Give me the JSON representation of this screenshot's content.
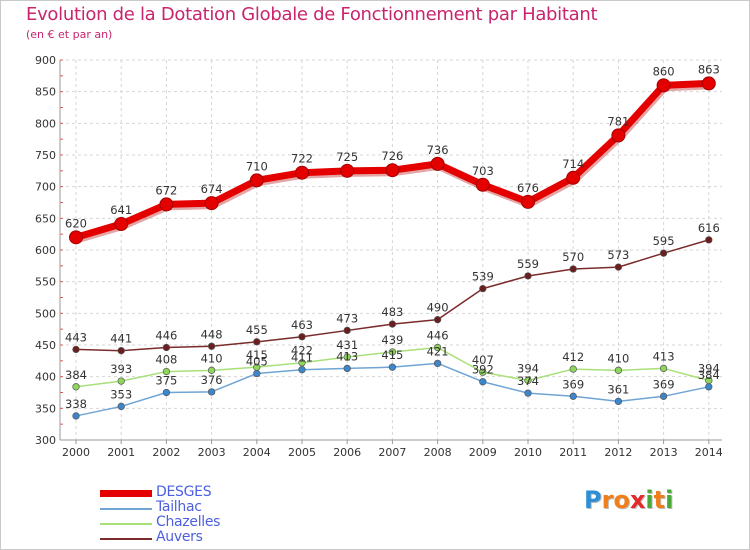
{
  "title": "Evolution de la Dotation Globale de Fonctionnement par Habitant",
  "subtitle": "(en € et par an)",
  "logo": {
    "letters": [
      {
        "ch": "P",
        "color": "#2d8fd6"
      },
      {
        "ch": "r",
        "color": "#f07f1a"
      },
      {
        "ch": "o",
        "color": "#f07f1a"
      },
      {
        "ch": "x",
        "color": "#e32b2b"
      },
      {
        "ch": "i",
        "color": "#4aa838"
      },
      {
        "ch": "t",
        "color": "#f07f1a"
      },
      {
        "ch": "i",
        "color": "#4aa838"
      }
    ]
  },
  "chart_data": {
    "type": "line",
    "title": "Evolution de la Dotation Globale de Fonctionnement par Habitant",
    "ylabel": "(en € et par an)",
    "xlabel": "",
    "ylim": [
      300,
      900
    ],
    "yticks": [
      300,
      350,
      400,
      450,
      500,
      550,
      600,
      650,
      700,
      750,
      800,
      850,
      900
    ],
    "categories": [
      "2000",
      "2001",
      "2002",
      "2003",
      "2004",
      "2005",
      "2006",
      "2007",
      "2008",
      "2009",
      "2010",
      "2011",
      "2012",
      "2013",
      "2014"
    ],
    "grid": true,
    "legend_position": "bottom-left",
    "series": [
      {
        "name": "DESGES",
        "color": "#e50000",
        "marker_color": "#e50000",
        "thick": true,
        "values": [
          620,
          641,
          672,
          674,
          710,
          722,
          725,
          726,
          736,
          703,
          676,
          714,
          781,
          860,
          863
        ],
        "labels": [
          "620",
          "641",
          "672",
          "674",
          "710",
          "722",
          "725",
          "726",
          "736",
          "703",
          "676",
          "714",
          "781",
          "860",
          "863"
        ]
      },
      {
        "name": "Tailhac",
        "color": "#6fa4d4",
        "marker_color": "#3e86cc",
        "thick": false,
        "values": [
          338,
          353,
          375,
          376,
          405,
          411,
          413,
          415,
          421,
          392,
          374,
          369,
          361,
          369,
          384
        ],
        "labels": [
          "338",
          "353",
          "375",
          "376",
          "405",
          "411",
          "413",
          "415",
          "421",
          "392",
          "374",
          "369",
          "361",
          "369",
          "384"
        ]
      },
      {
        "name": "Chazelles",
        "color": "#a8e07a",
        "marker_color": "#8fd65c",
        "thick": false,
        "values": [
          384,
          393,
          408,
          410,
          415,
          422,
          431,
          439,
          446,
          407,
          394,
          412,
          410,
          413,
          394
        ],
        "labels": [
          "384",
          "393",
          "408",
          "410",
          "415",
          "422",
          "431",
          "439",
          "446",
          "407",
          "394",
          "412",
          "410",
          "413",
          "394"
        ]
      },
      {
        "name": "Auvers",
        "color": "#7a2b2b",
        "marker_color": "#6b1e1e",
        "thick": false,
        "values": [
          443,
          441,
          446,
          448,
          455,
          463,
          473,
          483,
          490,
          539,
          559,
          570,
          573,
          595,
          616
        ],
        "labels": [
          "443",
          "441",
          "446",
          "448",
          "455",
          "463",
          "473",
          "483",
          "490",
          "539",
          "559",
          "570",
          "573",
          "595",
          "616"
        ]
      }
    ]
  }
}
